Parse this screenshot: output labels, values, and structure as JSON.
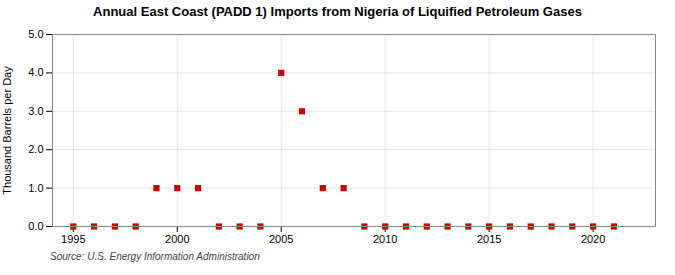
{
  "chart_data": {
    "type": "scatter",
    "title": "Annual East Coast (PADD 1) Imports from Nigeria of Liquified Petroleum Gases",
    "ylabel": "Thousand Barrels per Day",
    "annotation": "Source: U.S. Energy Information Administration",
    "x": [
      1995,
      1996,
      1997,
      1998,
      1999,
      2000,
      2001,
      2002,
      2003,
      2004,
      2005,
      2006,
      2007,
      2008,
      2009,
      2010,
      2011,
      2012,
      2013,
      2014,
      2015,
      2016,
      2017,
      2018,
      2019,
      2020,
      2021
    ],
    "values": [
      0,
      0,
      0,
      0,
      1,
      1,
      1,
      0,
      0,
      0,
      4,
      3,
      1,
      1,
      0,
      0,
      0,
      0,
      0,
      0,
      0,
      0,
      0,
      0,
      0,
      0,
      0
    ],
    "color": "#cc0000",
    "marker": "square",
    "xlim": [
      1994,
      2023
    ],
    "xticks": [
      1995,
      2000,
      2005,
      2010,
      2015,
      2020
    ],
    "ylim": [
      0,
      5.0
    ],
    "yticks": [
      {
        "value": 0.0,
        "label": "0.0"
      },
      {
        "value": 1.0,
        "label": "1.0"
      },
      {
        "value": 2.0,
        "label": "2.0"
      },
      {
        "value": 3.0,
        "label": "3.0"
      },
      {
        "value": 4.0,
        "label": "4.0"
      },
      {
        "value": 5.0,
        "label": "5.0"
      }
    ],
    "grid": true
  }
}
